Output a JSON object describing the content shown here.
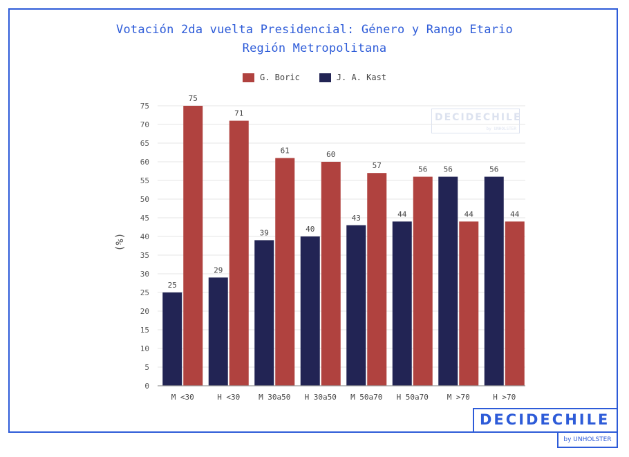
{
  "chart_data": {
    "type": "bar",
    "title": "Votación 2da vuelta Presidencial: Género y Rango Etario",
    "subtitle": "Región Metropolitana",
    "ylabel": "(%)",
    "xlabel": "",
    "ylim": [
      0,
      75
    ],
    "yticks": [
      0,
      5,
      10,
      15,
      20,
      25,
      30,
      35,
      40,
      45,
      50,
      55,
      60,
      65,
      70,
      75
    ],
    "grid": true,
    "legend_position": "top-center",
    "categories": [
      "M <30",
      "H <30",
      "M 30a50",
      "H 30a50",
      "M 50a70",
      "H 50a70",
      "M >70",
      "H >70"
    ],
    "series": [
      {
        "name": "J. A. Kast",
        "color": "#222454",
        "values": [
          25,
          29,
          39,
          40,
          43,
          44,
          56,
          56
        ]
      },
      {
        "name": "G. Boric",
        "color": "#b0423f",
        "values": [
          75,
          71,
          61,
          60,
          57,
          56,
          44,
          44
        ]
      }
    ],
    "legend_order": [
      "G. Boric",
      "J. A. Kast"
    ]
  },
  "watermark": {
    "main": "DECIDECHILE",
    "sub": "by UNHOLSTER"
  },
  "branding": {
    "logo": "DECIDECHILE",
    "byline": "by UNHOLSTER",
    "accent": "#2d5bd8"
  }
}
